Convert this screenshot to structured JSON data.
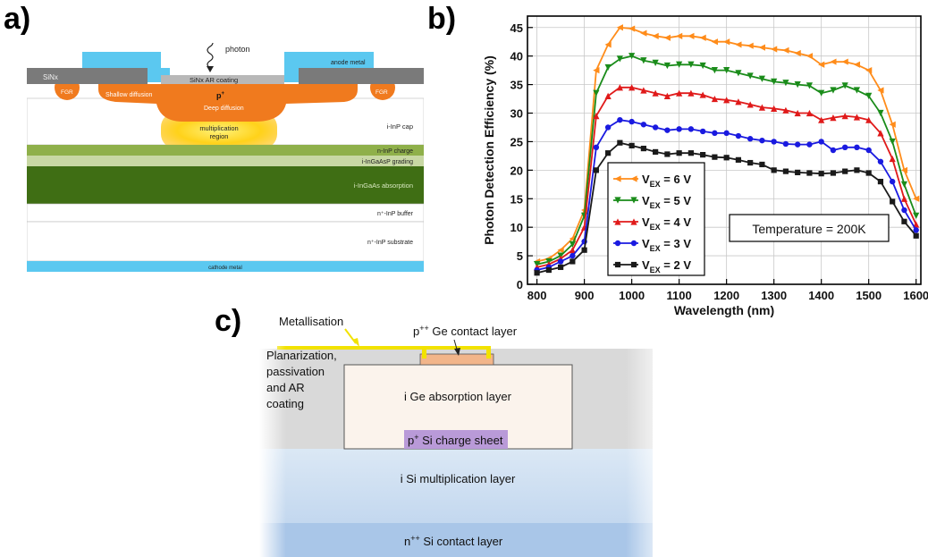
{
  "panel_labels": {
    "a": "a)",
    "b": "b)",
    "c": "c)"
  },
  "panel_a": {
    "photon": "photon",
    "anode_metal": "anode metal",
    "sinx": "SiNx",
    "sinx_ar": "SiNx AR coating",
    "fgr_left": "FGR",
    "fgr_right": "FGR",
    "shallow_diffusion": "Shallow diffusion",
    "p_plus": "p",
    "p_plus_sup": "+",
    "deep_diffusion": "Deep diffusion",
    "multiplication_1": "multiplication",
    "multiplication_2": "region",
    "inp_cap": "i-InP cap",
    "inp_charge": "n-InP charge",
    "grading": "i-InGaAsP grading",
    "absorption": "i-InGaAs absorption",
    "buffer": "n⁺-InP buffer",
    "substrate": "n⁺-InP substrate",
    "cathode_metal": "cathode metal"
  },
  "panel_c": {
    "metallisation": "Metallisation",
    "ge_contact": "p",
    "ge_contact_sup": "++",
    "ge_contact_rest": " Ge contact layer",
    "planarization_1": "Planarization,",
    "planarization_2": "passivation",
    "planarization_3": "and AR",
    "planarization_4": "coating",
    "ge_absorption": "i Ge absorption layer",
    "charge_sheet": "p",
    "charge_sheet_sup": "+",
    "charge_sheet_rest": " Si charge sheet",
    "multiplication": "i Si multiplication layer",
    "contact": "n",
    "contact_sup": "++",
    "contact_rest": " Si contact layer"
  },
  "chart_data": {
    "type": "line",
    "xlabel": "Wavelength (nm)",
    "ylabel": "Photon Detection Efficiency  (%)",
    "xlim": [
      780,
      1610
    ],
    "ylim": [
      0,
      47
    ],
    "xticks": [
      800,
      900,
      1000,
      1100,
      1200,
      1300,
      1400,
      1500,
      1600
    ],
    "yticks": [
      0,
      5,
      10,
      15,
      20,
      25,
      30,
      35,
      40,
      45
    ],
    "grid": true,
    "legend_position": "bottom-left",
    "annotation": "Temperature = 200K",
    "x": [
      800,
      825,
      850,
      875,
      900,
      925,
      950,
      975,
      1000,
      1025,
      1050,
      1075,
      1100,
      1125,
      1150,
      1175,
      1200,
      1225,
      1250,
      1275,
      1300,
      1325,
      1350,
      1375,
      1400,
      1425,
      1450,
      1475,
      1500,
      1525,
      1550,
      1575,
      1600
    ],
    "series": [
      {
        "name": "V_EX = 6 V",
        "label_main": "V",
        "label_sub": "EX",
        "label_rest": " = 6 V",
        "color": "#ff8c1a",
        "marker": "triangle-left",
        "values": [
          4,
          4.5,
          6,
          8,
          13,
          37.5,
          42,
          45,
          44.8,
          44,
          43.5,
          43.2,
          43.5,
          43.5,
          43.2,
          42.5,
          42.5,
          42,
          41.8,
          41.5,
          41.2,
          41,
          40.5,
          40,
          38.5,
          39,
          39,
          38.5,
          37.5,
          34,
          28,
          20,
          15
        ]
      },
      {
        "name": "V_EX = 5 V",
        "label_main": "V",
        "label_sub": "EX",
        "label_rest": " = 5 V",
        "color": "#1a8c1a",
        "marker": "triangle-down",
        "values": [
          3.5,
          4,
          5,
          7,
          12,
          33.5,
          38,
          39.5,
          40,
          39.2,
          38.8,
          38.3,
          38.5,
          38.5,
          38.3,
          37.5,
          37.5,
          37,
          36.5,
          36,
          35.5,
          35.3,
          35,
          34.8,
          33.5,
          34,
          34.8,
          34,
          33,
          30,
          25,
          17.5,
          12
        ]
      },
      {
        "name": "V_EX = 4 V",
        "label_main": "V",
        "label_sub": "EX",
        "label_rest": " = 4 V",
        "color": "#e01a1a",
        "marker": "triangle-up",
        "values": [
          3,
          3.5,
          4.5,
          6,
          10,
          29.5,
          33,
          34.5,
          34.5,
          34,
          33.5,
          33,
          33.5,
          33.5,
          33.2,
          32.5,
          32.3,
          32,
          31.5,
          31,
          30.8,
          30.5,
          30,
          30,
          28.8,
          29.2,
          29.5,
          29.3,
          28.8,
          26.5,
          22,
          15,
          10.5
        ]
      },
      {
        "name": "V_EX = 3 V",
        "label_main": "V",
        "label_sub": "EX",
        "label_rest": " = 3 V",
        "color": "#1a1ae0",
        "marker": "circle",
        "values": [
          2.5,
          3,
          4,
          5,
          7.5,
          24,
          27.5,
          28.8,
          28.5,
          28,
          27.5,
          27,
          27.2,
          27.2,
          26.8,
          26.5,
          26.5,
          26,
          25.5,
          25.2,
          25,
          24.6,
          24.5,
          24.5,
          25,
          23.5,
          24,
          24,
          23.5,
          21.5,
          18,
          13,
          9.5
        ]
      },
      {
        "name": "V_EX = 2 V",
        "label_main": "V",
        "label_sub": "EX",
        "label_rest": " = 2 V",
        "color": "#1a1a1a",
        "marker": "square",
        "values": [
          2,
          2.5,
          3,
          4,
          6,
          20,
          23,
          24.8,
          24.3,
          23.8,
          23.2,
          22.8,
          23,
          23,
          22.7,
          22.3,
          22.2,
          21.8,
          21.3,
          21,
          20,
          19.8,
          19.6,
          19.5,
          19.4,
          19.5,
          19.8,
          20,
          19.5,
          18,
          14.5,
          11,
          8.5
        ]
      }
    ]
  }
}
